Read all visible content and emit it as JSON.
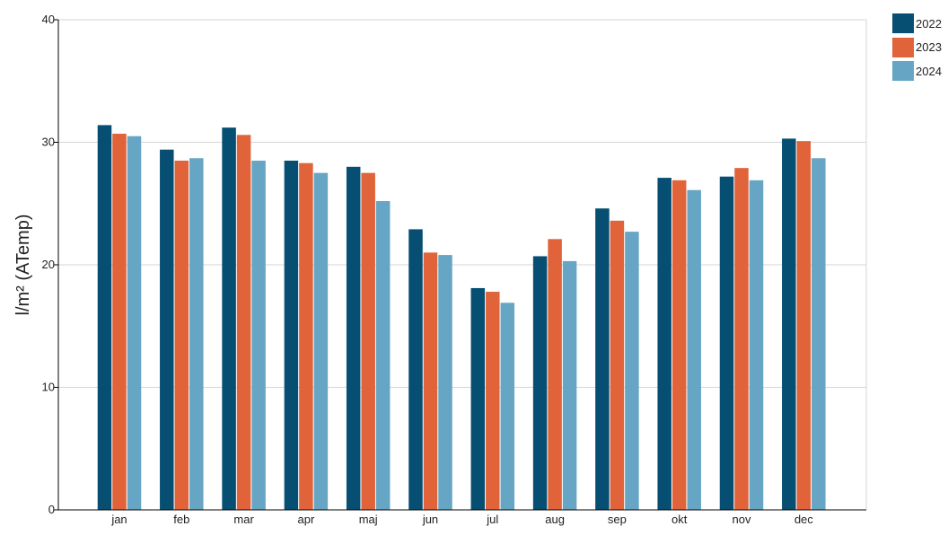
{
  "chart_data": {
    "type": "bar",
    "title": "",
    "xlabel": "",
    "ylabel": "l/m² (ATemp)",
    "ylim": [
      0,
      40
    ],
    "yticks": [
      0,
      10,
      20,
      30,
      40
    ],
    "grid": true,
    "legend_position": "top-right",
    "categories": [
      "jan",
      "feb",
      "mar",
      "apr",
      "maj",
      "jun",
      "jul",
      "aug",
      "sep",
      "okt",
      "nov",
      "dec"
    ],
    "series": [
      {
        "name": "2022",
        "color": "#064f72",
        "values": [
          31.4,
          29.4,
          31.2,
          28.5,
          28.0,
          22.9,
          18.1,
          20.7,
          24.6,
          27.1,
          27.2,
          30.3
        ]
      },
      {
        "name": "2023",
        "color": "#e0633a",
        "values": [
          30.7,
          28.5,
          30.6,
          28.3,
          27.5,
          21.0,
          17.8,
          22.1,
          23.6,
          26.9,
          27.9,
          30.1
        ]
      },
      {
        "name": "2024",
        "color": "#67a5c4",
        "values": [
          30.5,
          28.7,
          28.5,
          27.5,
          25.2,
          20.8,
          16.9,
          20.3,
          22.7,
          26.1,
          26.9,
          28.7
        ]
      }
    ]
  }
}
